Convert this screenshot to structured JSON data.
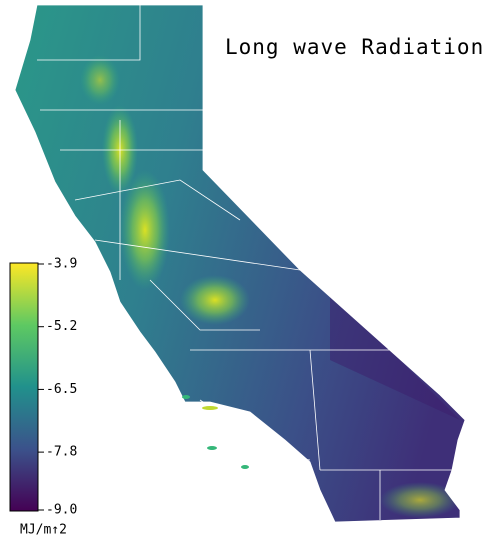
{
  "title": "Long wave Radiation",
  "colorbar": {
    "range": [
      -9,
      -3.9
    ],
    "ticks": [
      -3.9,
      -5.2,
      -6.5,
      -7.8,
      {
        "value": -9,
        "label": "-9.0"
      }
    ],
    "unit": "MJ/m↑2",
    "colors": [
      "#440154",
      "#3b528b",
      "#21918c",
      "#5ec962",
      "#fde725"
    ]
  }
}
